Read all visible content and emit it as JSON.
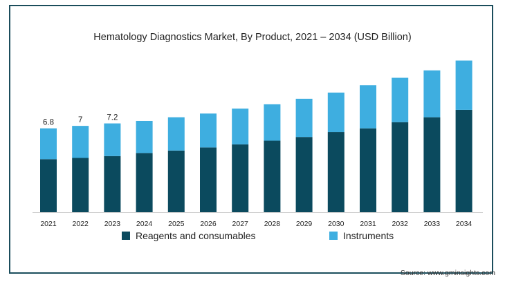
{
  "chart_data": {
    "type": "bar",
    "stacked": true,
    "title": "Hematology Diagnostics Market, By Product, 2021 – 2034 (USD Billion)",
    "categories": [
      "2021",
      "2022",
      "2023",
      "2024",
      "2025",
      "2026",
      "2027",
      "2028",
      "2029",
      "2030",
      "2031",
      "2032",
      "2033",
      "2034"
    ],
    "series": [
      {
        "name": "Reagents and consumables",
        "color": "#0b4a5e",
        "values": [
          4.3,
          4.4,
          4.55,
          4.8,
          5.0,
          5.25,
          5.5,
          5.8,
          6.1,
          6.5,
          6.8,
          7.3,
          7.7,
          8.3
        ]
      },
      {
        "name": "Instruments",
        "color": "#3eaee0",
        "values": [
          2.5,
          2.6,
          2.65,
          2.6,
          2.7,
          2.75,
          2.9,
          2.95,
          3.1,
          3.2,
          3.5,
          3.6,
          3.8,
          4.0
        ]
      }
    ],
    "data_labels": [
      "6.8",
      "7",
      "7.2"
    ],
    "ylim": [
      0,
      12.5
    ],
    "grid": false,
    "legend_position": "bottom"
  },
  "source": "Source: www.gminsights.com"
}
